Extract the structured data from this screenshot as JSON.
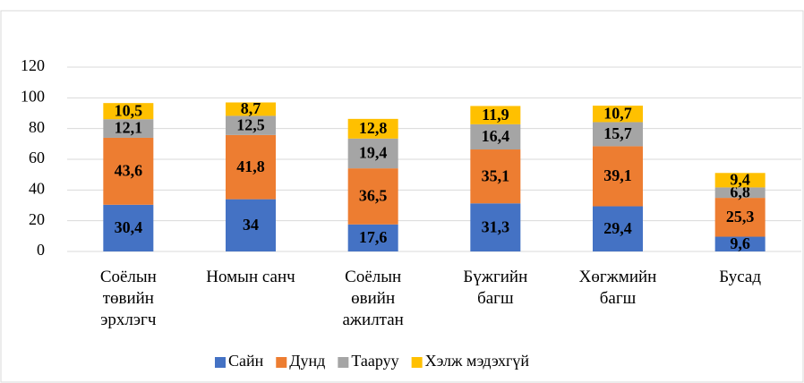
{
  "chart_data": {
    "type": "stacked_bar",
    "categories": [
      "Соёлын төвийн эрхлэгч",
      "Номын санч",
      "Соёлын өвийн ажилтан",
      "Бүжгийн багш",
      "Хөгжмийн багш",
      "Бусад"
    ],
    "series": [
      {
        "name": "Сайн",
        "color": "#4472c4",
        "values": [
          30.4,
          34,
          17.6,
          31.3,
          29.4,
          9.6
        ],
        "value_labels": [
          "30,4",
          "34",
          "17,6",
          "31,3",
          "29,4",
          "9,6"
        ]
      },
      {
        "name": "Дунд",
        "color": "#ed7d31",
        "values": [
          43.6,
          41.8,
          36.5,
          35.1,
          39.1,
          25.3
        ],
        "value_labels": [
          "43,6",
          "41,8",
          "36,5",
          "35,1",
          "39,1",
          "25,3"
        ]
      },
      {
        "name": "Тааруу",
        "color": "#a5a5a5",
        "values": [
          12.1,
          12.5,
          19.4,
          16.4,
          15.7,
          6.8
        ],
        "value_labels": [
          "12,1",
          "12,5",
          "19,4",
          "16,4",
          "15,7",
          "6,8"
        ]
      },
      {
        "name": "Хэлж мэдэхгүй",
        "color": "#ffc000",
        "values": [
          10.5,
          8.7,
          12.8,
          11.9,
          10.7,
          9.4
        ],
        "value_labels": [
          "10,5",
          "8,7",
          "12,8",
          "11,9",
          "10,7",
          "9,4"
        ]
      }
    ],
    "ylim": [
      0,
      120
    ],
    "yticks": [
      0,
      20,
      40,
      60,
      80,
      100,
      120
    ],
    "grid": true,
    "legend": "bottom"
  }
}
